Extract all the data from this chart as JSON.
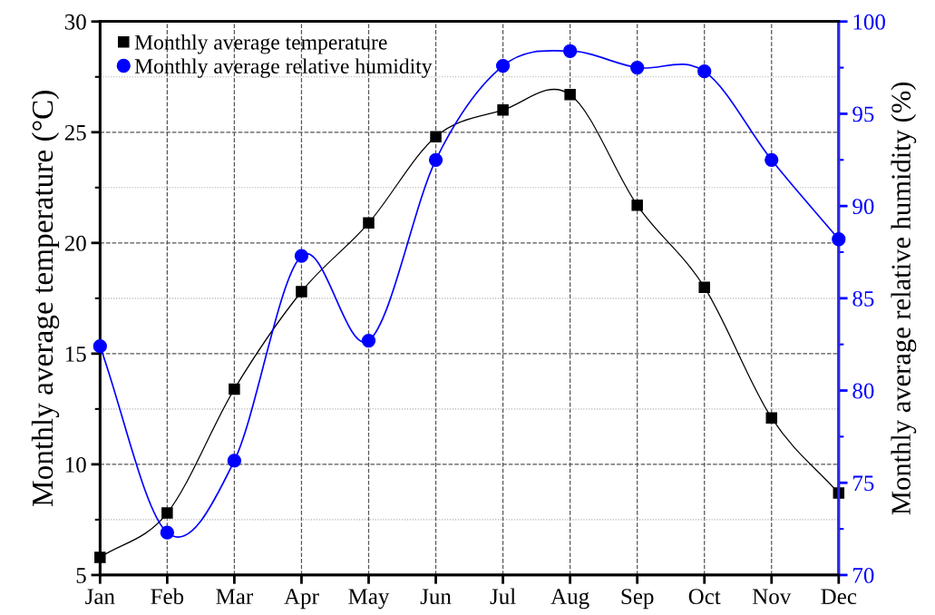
{
  "chart_data": {
    "type": "line",
    "categories": [
      "Jan",
      "Feb",
      "Mar",
      "Apr",
      "May",
      "Jun",
      "Jul",
      "Aug",
      "Sep",
      "Oct",
      "Nov",
      "Dec"
    ],
    "series": [
      {
        "name": "Monthly average temperature",
        "color": "#000000",
        "marker": "square",
        "values": [
          5.8,
          7.8,
          13.4,
          17.8,
          20.9,
          24.8,
          26.0,
          26.7,
          21.7,
          18.0,
          12.1,
          8.7
        ]
      },
      {
        "name": "Monthly average relative humidity",
        "color": "#0000ff",
        "marker": "circle",
        "axis": "y2",
        "values": [
          82.4,
          72.3,
          76.2,
          87.3,
          82.7,
          92.5,
          97.6,
          98.4,
          97.5,
          97.3,
          92.5,
          88.2
        ]
      }
    ],
    "ylabel": "Monthly average temperature (°C)",
    "y2label": "Monthly average relative humidity (%)",
    "ylim": [
      5,
      30
    ],
    "yticks": [
      5,
      10,
      15,
      20,
      25,
      30
    ],
    "y2lim": [
      70,
      100
    ],
    "y2ticks": [
      70,
      75,
      80,
      85,
      90,
      95,
      100
    ],
    "grid": true,
    "legend": "top left",
    "line_style": "solid"
  }
}
